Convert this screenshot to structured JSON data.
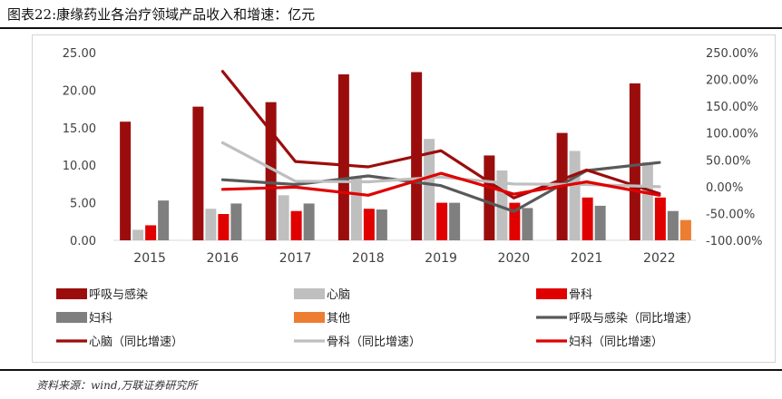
{
  "header": {
    "title": "图表22:康缘药业各治疗领域产品收入和增速：亿元"
  },
  "footer": {
    "source": "资料来源：wind,万联证券研究所"
  },
  "chart_data": {
    "type": "bar",
    "categories": [
      "2015",
      "2016",
      "2017",
      "2018",
      "2019",
      "2020",
      "2021",
      "2022"
    ],
    "y_left": {
      "ylim": [
        0,
        25
      ],
      "ticks": [
        "0.00",
        "5.00",
        "10.00",
        "15.00",
        "20.00",
        "25.00"
      ]
    },
    "y_right": {
      "ylim": [
        -100,
        250
      ],
      "ticks": [
        "-100.00%",
        "-50.00%",
        "0.00%",
        "50.00%",
        "100.00%",
        "150.00%",
        "200.00%",
        "250.00%"
      ]
    },
    "bar_series": [
      {
        "name": "呼吸与感染",
        "color": "#9b0d0d",
        "values": [
          15.8,
          17.8,
          18.4,
          22.1,
          22.4,
          11.3,
          14.3,
          20.9
        ]
      },
      {
        "name": "心脑",
        "color": "#bfbfbf",
        "values": [
          1.4,
          4.2,
          6.0,
          8.3,
          13.5,
          9.3,
          11.9,
          10.4
        ]
      },
      {
        "name": "骨科",
        "color": "#e00000",
        "values": [
          2.0,
          3.5,
          3.9,
          4.2,
          5.0,
          5.0,
          5.7,
          5.7
        ]
      },
      {
        "name": "妇科",
        "color": "#7f7f7f",
        "values": [
          5.3,
          4.9,
          4.9,
          4.1,
          5.0,
          4.3,
          4.6,
          3.9
        ]
      },
      {
        "name": "其他",
        "color": "#ed7d31",
        "values": [
          null,
          null,
          null,
          null,
          null,
          null,
          null,
          2.7
        ]
      }
    ],
    "line_series": [
      {
        "name": "呼吸与感染（同比增速）",
        "color": "#595959",
        "values": [
          null,
          13,
          4,
          20,
          2,
          -46,
          30,
          45
        ]
      },
      {
        "name": "心脑（同比增速）",
        "color": "#9b0d0d",
        "values": [
          null,
          215,
          47,
          37,
          67,
          -21,
          31,
          -13
        ]
      },
      {
        "name": "骨科（同比增速）",
        "color": "#bfbfbf",
        "values": [
          null,
          82,
          10,
          9,
          18,
          5,
          4,
          0
        ]
      },
      {
        "name": "妇科（同比增速）",
        "color": "#e00000",
        "values": [
          null,
          -5,
          -1,
          -16,
          25,
          -14,
          9,
          -16
        ]
      }
    ],
    "legend_position": "bottom",
    "grid": false
  }
}
